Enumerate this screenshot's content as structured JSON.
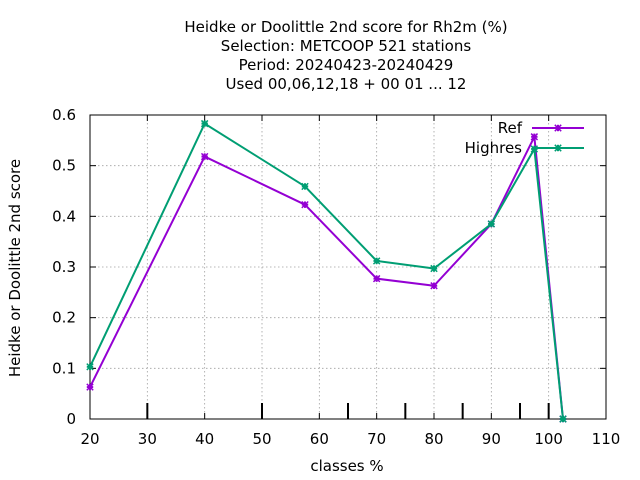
{
  "chart_data": {
    "type": "line",
    "title_lines": [
      "Heidke or Doolittle 2nd score  for Rh2m (%)",
      "Selection: METCOOP    521 stations",
      "Period: 20240423-20240429",
      "Used  00,06,12,18 + 00 01 ... 12"
    ],
    "xlabel": "classes %",
    "ylabel": "Heidke or Doolittle 2nd score",
    "xlim": [
      20,
      110
    ],
    "ylim": [
      0,
      0.6
    ],
    "xticks": [
      20,
      30,
      40,
      50,
      60,
      70,
      80,
      90,
      100,
      110
    ],
    "xtick_labels": [
      "20",
      "30",
      "40",
      "50",
      "60",
      "70",
      "80",
      "90",
      "100",
      "110"
    ],
    "yticks": [
      0,
      0.1,
      0.2,
      0.3,
      0.4,
      0.5,
      0.6
    ],
    "ytick_labels": [
      "0",
      "0.1",
      "0.2",
      "0.3",
      "0.4",
      "0.5",
      "0.6"
    ],
    "grid": true,
    "legend_position": "top-right",
    "class_marks": [
      30,
      50,
      65,
      75,
      85,
      95,
      100
    ],
    "series": [
      {
        "name": "Ref",
        "color": "#9400d3",
        "x": [
          20,
          40,
          57.5,
          70,
          80,
          90,
          97.5,
          102.5
        ],
        "y": [
          0.063,
          0.518,
          0.423,
          0.277,
          0.263,
          0.385,
          0.557,
          0.0
        ]
      },
      {
        "name": "Highres",
        "color": "#009e73",
        "x": [
          20,
          40,
          57.5,
          70,
          80,
          90,
          97.5,
          102.5
        ],
        "y": [
          0.103,
          0.583,
          0.459,
          0.312,
          0.297,
          0.385,
          0.533,
          0.0
        ]
      }
    ]
  }
}
